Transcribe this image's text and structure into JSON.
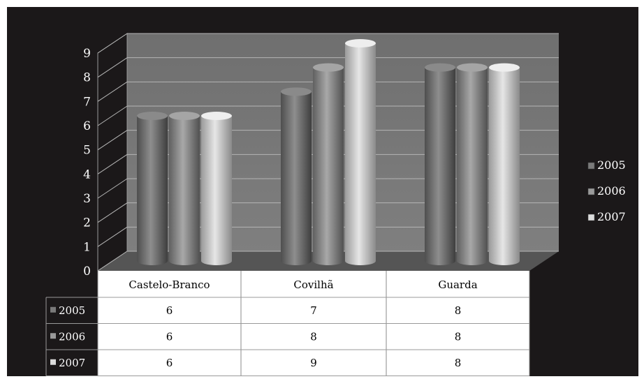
{
  "chart_data": {
    "type": "bar",
    "title": "",
    "xlabel": "",
    "ylabel": "",
    "categories": [
      "Castelo-Branco",
      "Covilhã",
      "Guarda"
    ],
    "series": [
      {
        "name": "2005",
        "values": [
          6,
          7,
          8
        ]
      },
      {
        "name": "2006",
        "values": [
          6,
          8,
          8
        ]
      },
      {
        "name": "2007",
        "values": [
          6,
          9,
          8
        ]
      }
    ],
    "ylim": [
      0,
      9
    ],
    "yticks": [
      "0",
      "1",
      "2",
      "3",
      "4",
      "5",
      "6",
      "7",
      "8",
      "9"
    ],
    "grid": true,
    "legend_position": "right",
    "data_table": true,
    "colors": {
      "background": "#1b1819",
      "wall": "#7a7a7a",
      "floor": "#555555",
      "gridline": "#b5b5b5",
      "series": [
        "#6a6a6a",
        "#8c8c8c",
        "#c8c8c8"
      ],
      "table_background": "#ffffff",
      "text": "#ffffff"
    }
  }
}
